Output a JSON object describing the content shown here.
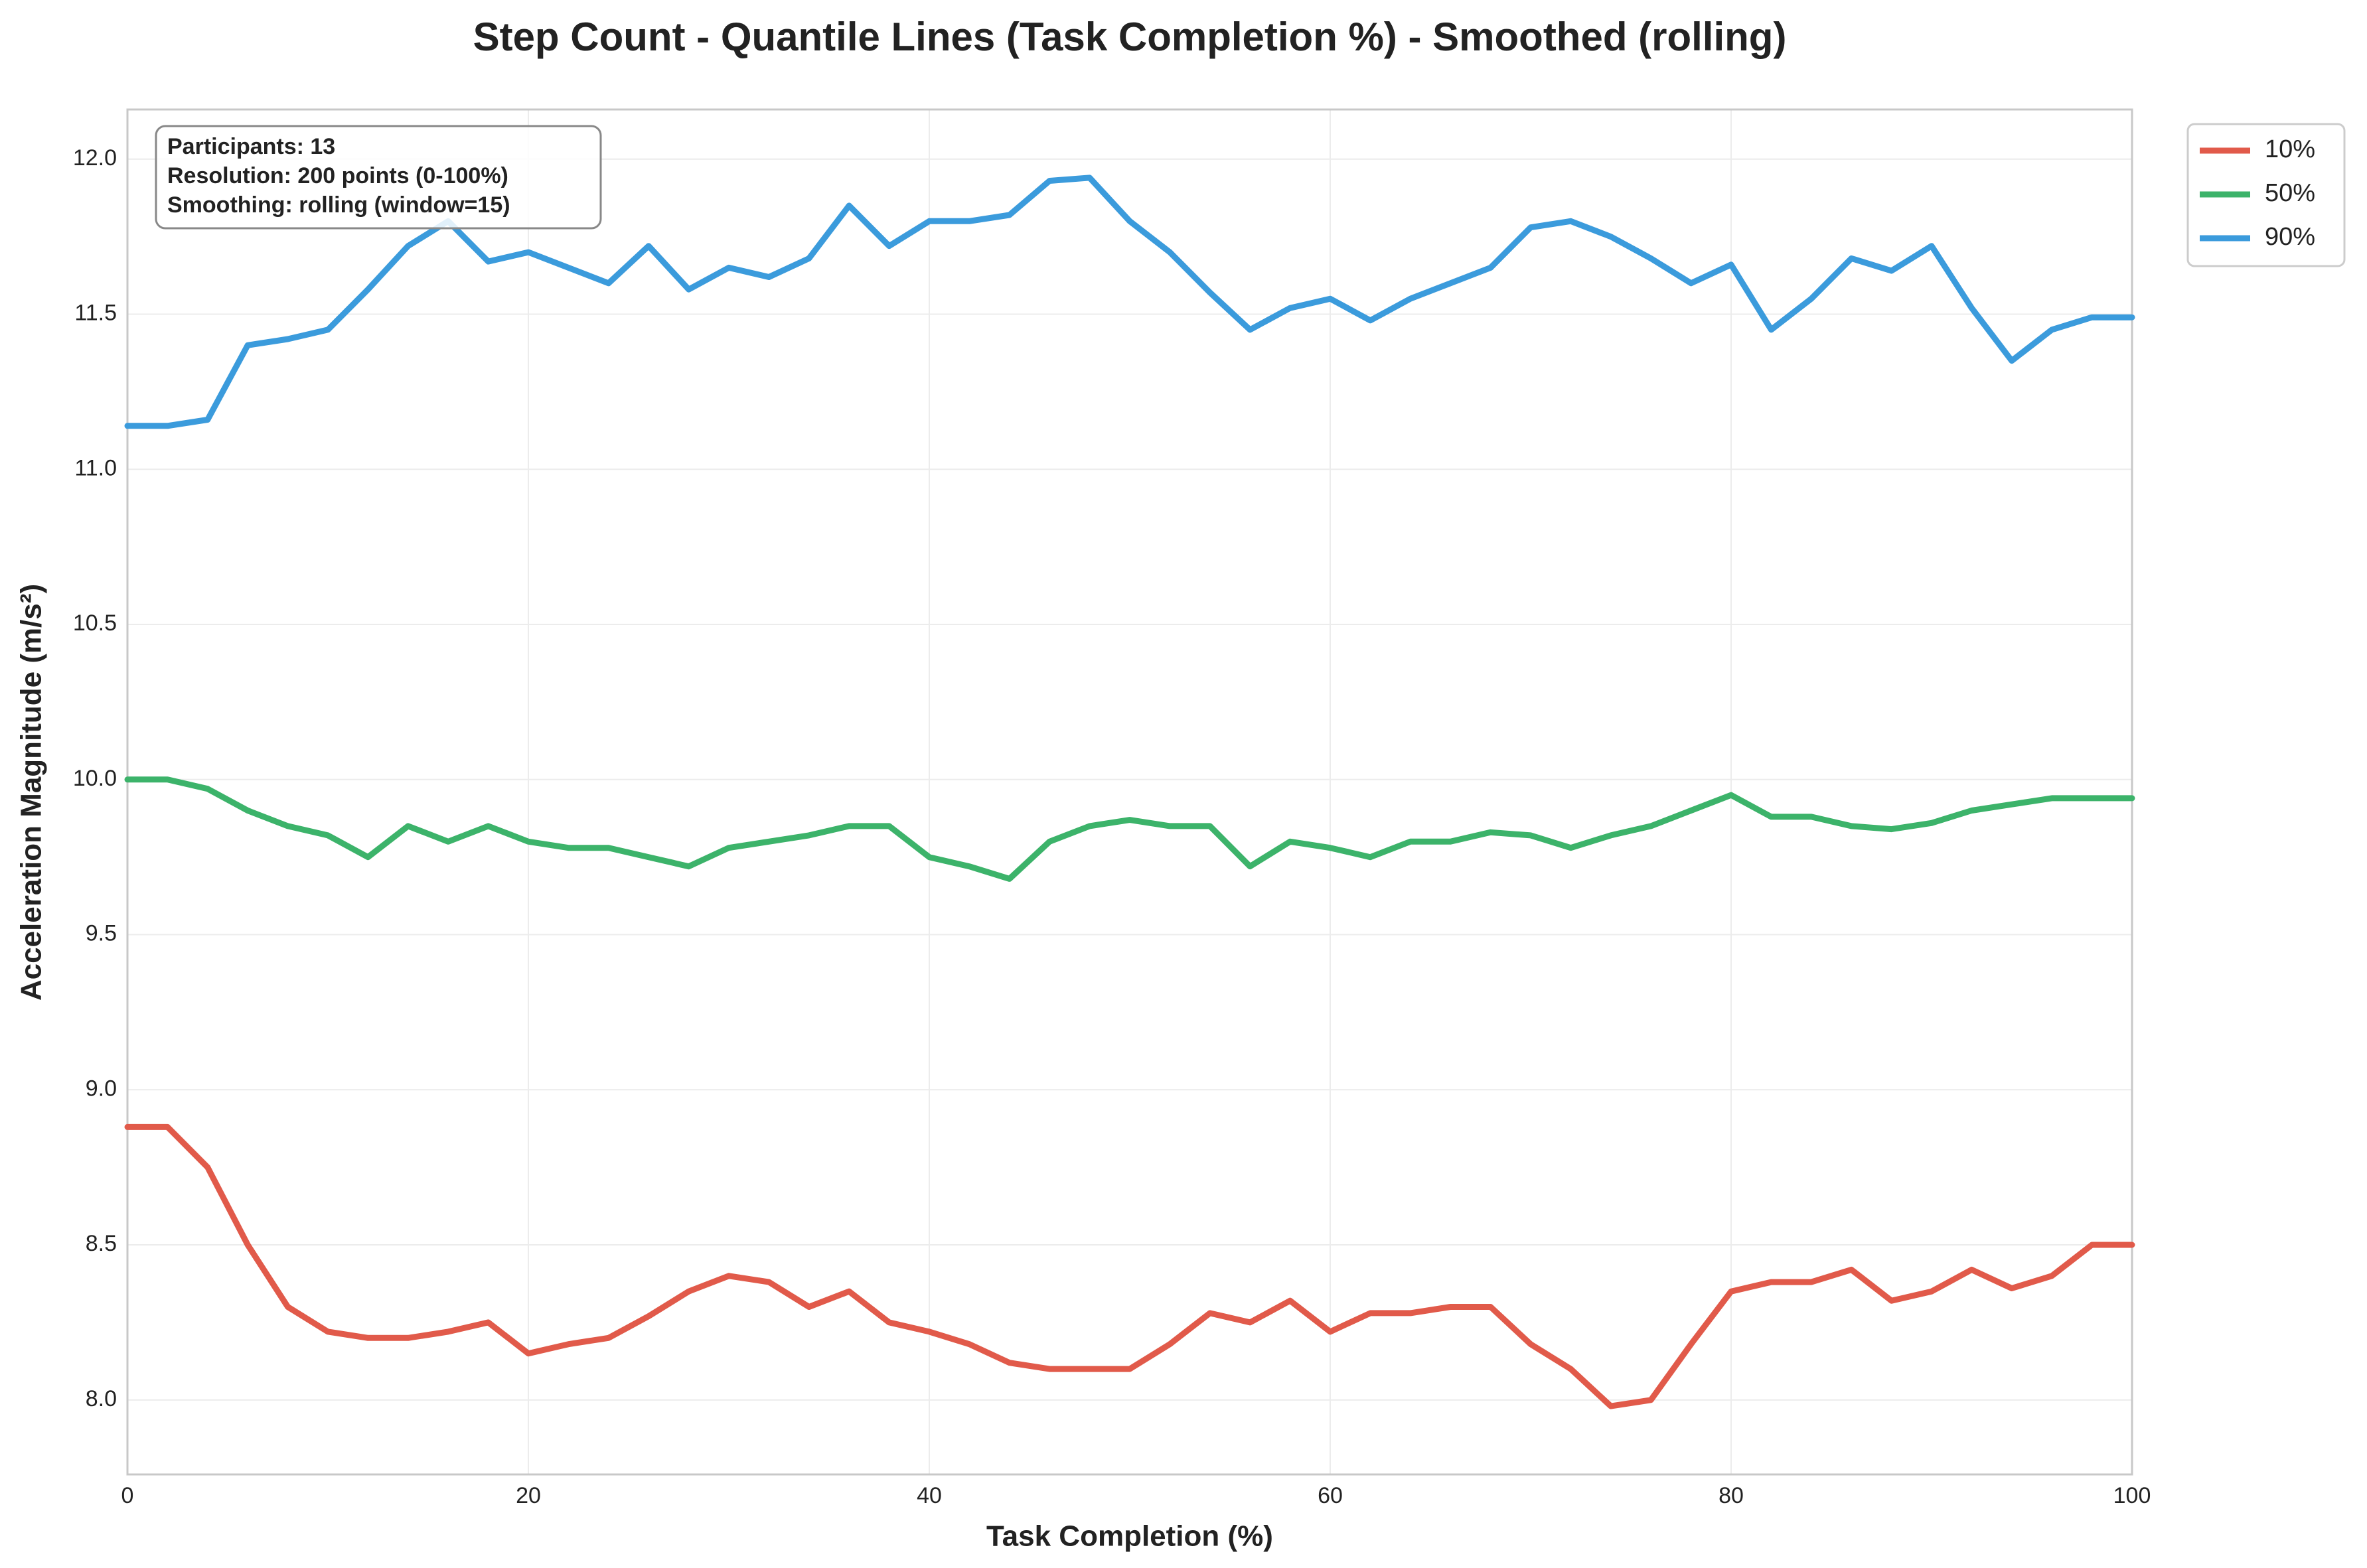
{
  "chart_data": {
    "type": "line",
    "title": "Step Count - Quantile Lines (Task Completion %) - Smoothed (rolling)",
    "x_label": "Task Completion (%)",
    "y_label": "Acceleration Magnitude (m/s²)",
    "annotations": [
      "Participants: 13",
      "Resolution: 200 points (0-100%)",
      "Smoothing: rolling (window=15)"
    ],
    "x": [
      0,
      2,
      4,
      6,
      8,
      10,
      12,
      14,
      16,
      18,
      20,
      22,
      24,
      26,
      28,
      30,
      32,
      34,
      36,
      38,
      40,
      42,
      44,
      46,
      48,
      50,
      52,
      54,
      56,
      58,
      60,
      62,
      64,
      66,
      68,
      70,
      72,
      74,
      76,
      78,
      80,
      82,
      84,
      86,
      88,
      90,
      92,
      94,
      96,
      98,
      100
    ],
    "series": [
      {
        "name": "10%",
        "color": "#e15a4a",
        "values": [
          8.88,
          8.88,
          8.75,
          8.5,
          8.3,
          8.22,
          8.2,
          8.2,
          8.22,
          8.25,
          8.15,
          8.18,
          8.2,
          8.27,
          8.35,
          8.4,
          8.38,
          8.3,
          8.35,
          8.25,
          8.22,
          8.18,
          8.12,
          8.1,
          8.1,
          8.1,
          8.18,
          8.28,
          8.25,
          8.32,
          8.22,
          8.28,
          8.28,
          8.3,
          8.3,
          8.18,
          8.1,
          7.98,
          8.0,
          8.18,
          8.35,
          8.38,
          8.38,
          8.42,
          8.32,
          8.35,
          8.42,
          8.36,
          8.4,
          8.5,
          8.5
        ]
      },
      {
        "name": "50%",
        "color": "#3cb36a",
        "values": [
          10.0,
          10.0,
          9.97,
          9.9,
          9.85,
          9.82,
          9.75,
          9.85,
          9.8,
          9.85,
          9.8,
          9.78,
          9.78,
          9.75,
          9.72,
          9.78,
          9.8,
          9.82,
          9.85,
          9.85,
          9.75,
          9.72,
          9.68,
          9.8,
          9.85,
          9.87,
          9.85,
          9.85,
          9.72,
          9.8,
          9.78,
          9.75,
          9.8,
          9.8,
          9.83,
          9.82,
          9.78,
          9.82,
          9.85,
          9.9,
          9.95,
          9.88,
          9.88,
          9.85,
          9.84,
          9.86,
          9.9,
          9.92,
          9.94,
          9.94,
          9.94
        ]
      },
      {
        "name": "90%",
        "color": "#3b9bdc",
        "values": [
          11.14,
          11.14,
          11.16,
          11.4,
          11.42,
          11.45,
          11.58,
          11.72,
          11.8,
          11.67,
          11.7,
          11.65,
          11.6,
          11.72,
          11.58,
          11.65,
          11.62,
          11.68,
          11.85,
          11.72,
          11.8,
          11.8,
          11.82,
          11.93,
          11.94,
          11.8,
          11.7,
          11.57,
          11.45,
          11.52,
          11.55,
          11.48,
          11.55,
          11.6,
          11.65,
          11.78,
          11.8,
          11.75,
          11.68,
          11.6,
          11.66,
          11.45,
          11.55,
          11.68,
          11.64,
          11.72,
          11.52,
          11.35,
          11.45,
          11.49,
          11.49
        ]
      }
    ],
    "xlim": [
      0,
      100
    ],
    "xticks": [
      0,
      20,
      40,
      60,
      80,
      100
    ],
    "ylim": [
      7.76,
      12.16
    ],
    "yticks": [
      {
        "value": 8,
        "label": "8.0"
      },
      8.5,
      {
        "value": 9,
        "label": "9.0"
      },
      9.5,
      {
        "value": 10,
        "label": "10.0"
      },
      10.5,
      {
        "value": 11,
        "label": "11.0"
      },
      11.5,
      {
        "value": 12,
        "label": "12.0"
      }
    ],
    "grid": true,
    "legend": "upper right outside"
  }
}
